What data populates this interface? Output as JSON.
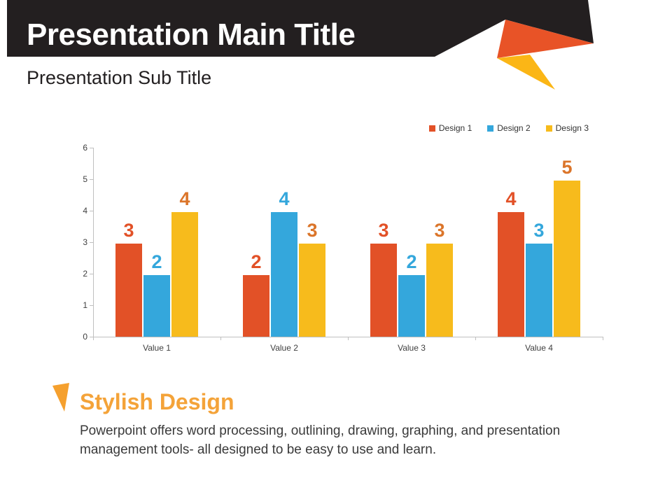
{
  "header": {
    "main_title": "Presentation Main Title",
    "sub_title": "Presentation Sub Title"
  },
  "section": {
    "heading": "Stylish Design",
    "body_lines": [
      "Powerpoint offers word processing, outlining, drawing, graphing, and presentation",
      "management tools- all designed to be easy to use and learn."
    ]
  },
  "colors": {
    "banner_black": "#231F20",
    "accent_orange": "#E85327",
    "accent_yellow": "#FBB616",
    "heading_orange": "#F4A339",
    "bar_red": "#E25127",
    "bar_blue": "#34A7DC",
    "bar_yellow": "#F7BB1C",
    "yellow_bar_label_orange": "#DB752A",
    "axis_gray": "#BFBFBF",
    "text_dark": "#3A3A3A"
  },
  "chart_data": {
    "type": "bar",
    "title": "",
    "xlabel": "",
    "ylabel": "",
    "categories": [
      "Value 1",
      "Value 2",
      "Value 3",
      "Value 4"
    ],
    "series": [
      {
        "name": "Design 1",
        "color": "#E25127",
        "label_color": "#E25127",
        "values": [
          3,
          2,
          3,
          4
        ]
      },
      {
        "name": "Design 2",
        "color": "#34A7DC",
        "label_color": "#34A7DC",
        "values": [
          2,
          4,
          2,
          3
        ]
      },
      {
        "name": "Design 3",
        "color": "#F7BB1C",
        "label_color": "#DB752A",
        "values": [
          4,
          3,
          3,
          5
        ]
      }
    ],
    "ylim": [
      0,
      6
    ],
    "yticks": [
      0,
      1,
      2,
      3,
      4,
      5,
      6
    ],
    "data_labels": true,
    "grid": false,
    "legend_position": "top-right"
  }
}
